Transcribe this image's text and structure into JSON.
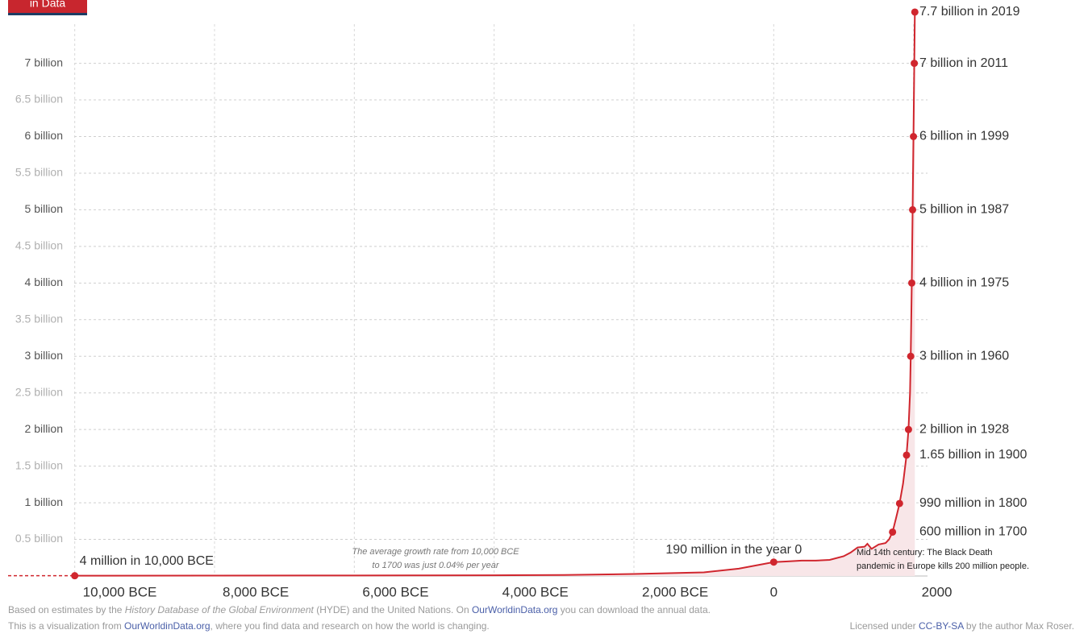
{
  "logo": "in Data",
  "chart_data": {
    "type": "line",
    "xlim": [
      -11000,
      2200
    ],
    "ylim": [
      0,
      7.75
    ],
    "xticks": [
      {
        "value": -10000,
        "label": "10,000 BCE"
      },
      {
        "value": -8000,
        "label": "8,000 BCE"
      },
      {
        "value": -6000,
        "label": "6,000 BCE"
      },
      {
        "value": -4000,
        "label": "4,000 BCE"
      },
      {
        "value": -2000,
        "label": "2,000 BCE"
      },
      0,
      2000
    ],
    "yticks": [
      {
        "value": 0.5,
        "label": "0.5 billion"
      },
      {
        "value": 1,
        "label": "1 billion"
      },
      {
        "value": 1.5,
        "label": "1.5 billion"
      },
      {
        "value": 2,
        "label": "2 billion"
      },
      {
        "value": 2.5,
        "label": "2.5 billion"
      },
      {
        "value": 3,
        "label": "3 billion"
      },
      {
        "value": 3.5,
        "label": "3.5 billion"
      },
      {
        "value": 4,
        "label": "4 billion"
      },
      {
        "value": 4.5,
        "label": "4.5 billion"
      },
      {
        "value": 5,
        "label": "5 billion"
      },
      {
        "value": 5.5,
        "label": "5.5 billion"
      },
      {
        "value": 6,
        "label": "6 billion"
      },
      {
        "value": 6.5,
        "label": "6.5 billion"
      },
      {
        "value": 7,
        "label": "7 billion"
      }
    ],
    "grid": true,
    "color": "#d0262e",
    "x": [
      -10000,
      -8000,
      -6000,
      -5000,
      -4000,
      -3000,
      -2000,
      -1000,
      -500,
      0,
      200,
      400,
      600,
      800,
      1000,
      1100,
      1200,
      1300,
      1340,
      1400,
      1500,
      1600,
      1650,
      1700,
      1750,
      1800,
      1850,
      1900,
      1928,
      1950,
      1960,
      1975,
      1987,
      1999,
      2011,
      2019
    ],
    "values": [
      0.004,
      0.005,
      0.007,
      0.008,
      0.01,
      0.014,
      0.027,
      0.05,
      0.1,
      0.19,
      0.2,
      0.21,
      0.21,
      0.22,
      0.27,
      0.32,
      0.39,
      0.4,
      0.44,
      0.37,
      0.43,
      0.45,
      0.5,
      0.6,
      0.79,
      0.99,
      1.26,
      1.65,
      2,
      2.5,
      3,
      4,
      5,
      6,
      7,
      7.7
    ],
    "points": {
      "x": [
        -10000,
        0,
        1700,
        1800,
        1900,
        1928,
        1960,
        1975,
        1987,
        1999,
        2011,
        2019
      ],
      "values": [
        0.004,
        0.19,
        0.6,
        0.99,
        1.65,
        2,
        3,
        4,
        5,
        6,
        7,
        7.7
      ],
      "value_labels": [
        "4 million in 10,000 BCE",
        "190 million in the year 0",
        "600 million in 1700",
        "990 million in 1800",
        "1.65 billion in 1900",
        "2 billion in 1928",
        "3 billion in 1960",
        "4 billion in 1975",
        "5 billion in 1987",
        "6 billion in 1999",
        "7 billion in 2011",
        "7.7 billion in 2019"
      ]
    },
    "annotations": [
      [
        "The average growth rate from 10,000 BCE",
        "to 1700 was just  0.04% per year"
      ],
      [
        "Mid 14th century: The Black Death",
        "pandemic in Europe kills 200 million people."
      ]
    ]
  },
  "footer": {
    "line1": [
      "Based on estimates by the ",
      "History Database of the Global Environment",
      " (HYDE) and the United Nations. On ",
      "OurWorldinData.org",
      " you can download the annual data."
    ],
    "line2": [
      "This is a visualization from ",
      "OurWorldinData.org",
      ", where you find data and research on how the world is changing."
    ],
    "license": [
      "Licensed under ",
      "CC-BY-SA",
      " by the author Max Roser."
    ]
  }
}
